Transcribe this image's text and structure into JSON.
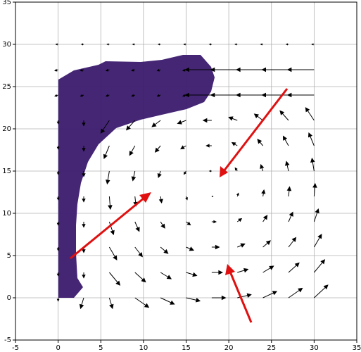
{
  "chart_data": {
    "type": "quiver",
    "xlim": [
      -5,
      35
    ],
    "ylim": [
      -5,
      35
    ],
    "xticks": [
      -5,
      0,
      5,
      10,
      15,
      20,
      25,
      30,
      35
    ],
    "yticks": [
      -5,
      0,
      5,
      10,
      15,
      20,
      25,
      30,
      35
    ],
    "grid": true,
    "color": "#000000",
    "x": [
      0,
      3,
      6,
      9,
      12,
      15,
      18,
      21,
      24,
      27,
      30,
      0,
      3,
      6,
      9,
      12,
      15,
      18,
      21,
      24,
      27,
      30,
      0,
      3,
      6,
      9,
      12,
      15,
      18,
      21,
      24,
      27,
      30,
      0,
      3,
      6,
      9,
      12,
      15,
      18,
      21,
      24,
      27,
      30,
      0,
      3,
      6,
      9,
      12,
      15,
      18,
      21,
      24,
      27,
      30,
      0,
      3,
      6,
      9,
      12,
      15,
      18,
      21,
      24,
      27,
      30,
      0,
      3,
      6,
      9,
      12,
      15,
      18,
      21,
      24,
      27,
      30,
      0,
      3,
      6,
      9,
      12,
      15,
      18,
      21,
      24,
      27,
      30,
      0,
      3,
      6,
      9,
      12,
      15,
      18,
      21,
      24,
      27,
      30,
      0,
      3,
      6,
      9,
      12,
      15,
      18,
      21,
      24,
      27,
      30,
      0,
      3,
      6,
      9,
      12,
      15,
      18,
      21,
      24,
      27,
      30
    ],
    "y": [
      0,
      0,
      0,
      0,
      0,
      0,
      0,
      0,
      0,
      0,
      0,
      3,
      3,
      3,
      3,
      3,
      3,
      3,
      3,
      3,
      3,
      3,
      6,
      6,
      6,
      6,
      6,
      6,
      6,
      6,
      6,
      6,
      6,
      9,
      9,
      9,
      9,
      9,
      9,
      9,
      9,
      9,
      9,
      9,
      12,
      12,
      12,
      12,
      12,
      12,
      12,
      12,
      12,
      12,
      12,
      15,
      15,
      15,
      15,
      15,
      15,
      15,
      15,
      15,
      15,
      15,
      18,
      18,
      18,
      18,
      18,
      18,
      18,
      18,
      18,
      18,
      18,
      21,
      21,
      21,
      21,
      21,
      21,
      21,
      21,
      21,
      21,
      21,
      24,
      24,
      24,
      24,
      24,
      24,
      24,
      24,
      24,
      24,
      24,
      27,
      27,
      27,
      27,
      27,
      27,
      27,
      27,
      27,
      27,
      27,
      30,
      30,
      30,
      30,
      30,
      30,
      30,
      30,
      30,
      30,
      30
    ],
    "u": [
      0,
      -0.3,
      0.3,
      1.3,
      1.3,
      1.3,
      1.3,
      1.3,
      1.3,
      1.3,
      1.3,
      0,
      0,
      1,
      1,
      1,
      1,
      1,
      1,
      1,
      1,
      1,
      0,
      0,
      0.7,
      0.7,
      0.7,
      0.7,
      0.7,
      0.7,
      0.7,
      0.7,
      0.7,
      0,
      0,
      0.4,
      0.4,
      0.4,
      0.4,
      0.4,
      0.4,
      0.4,
      0.4,
      0.4,
      0,
      0,
      0.1,
      0.1,
      0.1,
      0.1,
      0.1,
      0.1,
      0.1,
      0.1,
      0.1,
      0,
      0,
      -0.2,
      -0.2,
      -0.2,
      -0.2,
      -0.2,
      -0.2,
      -0.2,
      -0.2,
      -0.2,
      0,
      0,
      -0.5,
      -0.5,
      -0.5,
      -0.5,
      -0.5,
      -0.5,
      -0.5,
      -0.5,
      -0.5,
      0,
      0,
      -0.8,
      -0.8,
      -0.8,
      -0.8,
      -0.8,
      -0.8,
      -0.8,
      -0.8,
      -0.8,
      -0.3,
      -0.3,
      -0.3,
      -0.3,
      -0.3,
      -0.3,
      -2.5,
      -2.5,
      -2.5,
      -2.5,
      -2.5,
      -0.3,
      -0.3,
      -0.3,
      -0.3,
      -0.3,
      -0.3,
      -2.5,
      -2.5,
      -2.5,
      -2.5,
      -2.5,
      -0.2,
      -0.2,
      -0.2,
      -0.2,
      -0.2,
      -0.2,
      -0.2,
      -0.2,
      -0.2,
      -0.2,
      -0.2
    ],
    "v": [
      -0.3,
      -1,
      -1,
      -0.9,
      -0.6,
      -0.3,
      0,
      0.3,
      0.6,
      0.9,
      1.2,
      -0.3,
      -0.5,
      -1.2,
      -0.9,
      -0.6,
      -0.3,
      0,
      0.3,
      0.6,
      0.9,
      1.2,
      -0.3,
      -0.5,
      -1.2,
      -0.9,
      -0.6,
      -0.3,
      0,
      0.3,
      0.6,
      0.9,
      1.2,
      -0.3,
      -0.5,
      -1.2,
      -0.9,
      -0.6,
      -0.3,
      0,
      0.3,
      0.6,
      0.9,
      1.2,
      -0.3,
      -0.5,
      -1.2,
      -0.9,
      -0.6,
      -0.3,
      0,
      0.3,
      0.6,
      0.9,
      1.2,
      -0.3,
      -0.5,
      -1.2,
      -0.9,
      -0.6,
      -0.3,
      0,
      0.3,
      0.6,
      0.9,
      1.2,
      -0.3,
      -0.5,
      -1.2,
      -0.9,
      -0.6,
      -0.3,
      0,
      0.3,
      0.6,
      0.9,
      1.2,
      -0.3,
      -0.5,
      -1.2,
      -0.9,
      -0.6,
      -0.3,
      0,
      0.3,
      0.6,
      0.9,
      1.2,
      -0.1,
      -0.1,
      -0.1,
      -0.1,
      -0.1,
      -0.1,
      0,
      0,
      0,
      0,
      0,
      -0.1,
      -0.1,
      -0.1,
      -0.1,
      -0.1,
      -0.1,
      0,
      0,
      0,
      0,
      0,
      0,
      0,
      0,
      0,
      0,
      0,
      0,
      0,
      0,
      0,
      0
    ]
  }
}
